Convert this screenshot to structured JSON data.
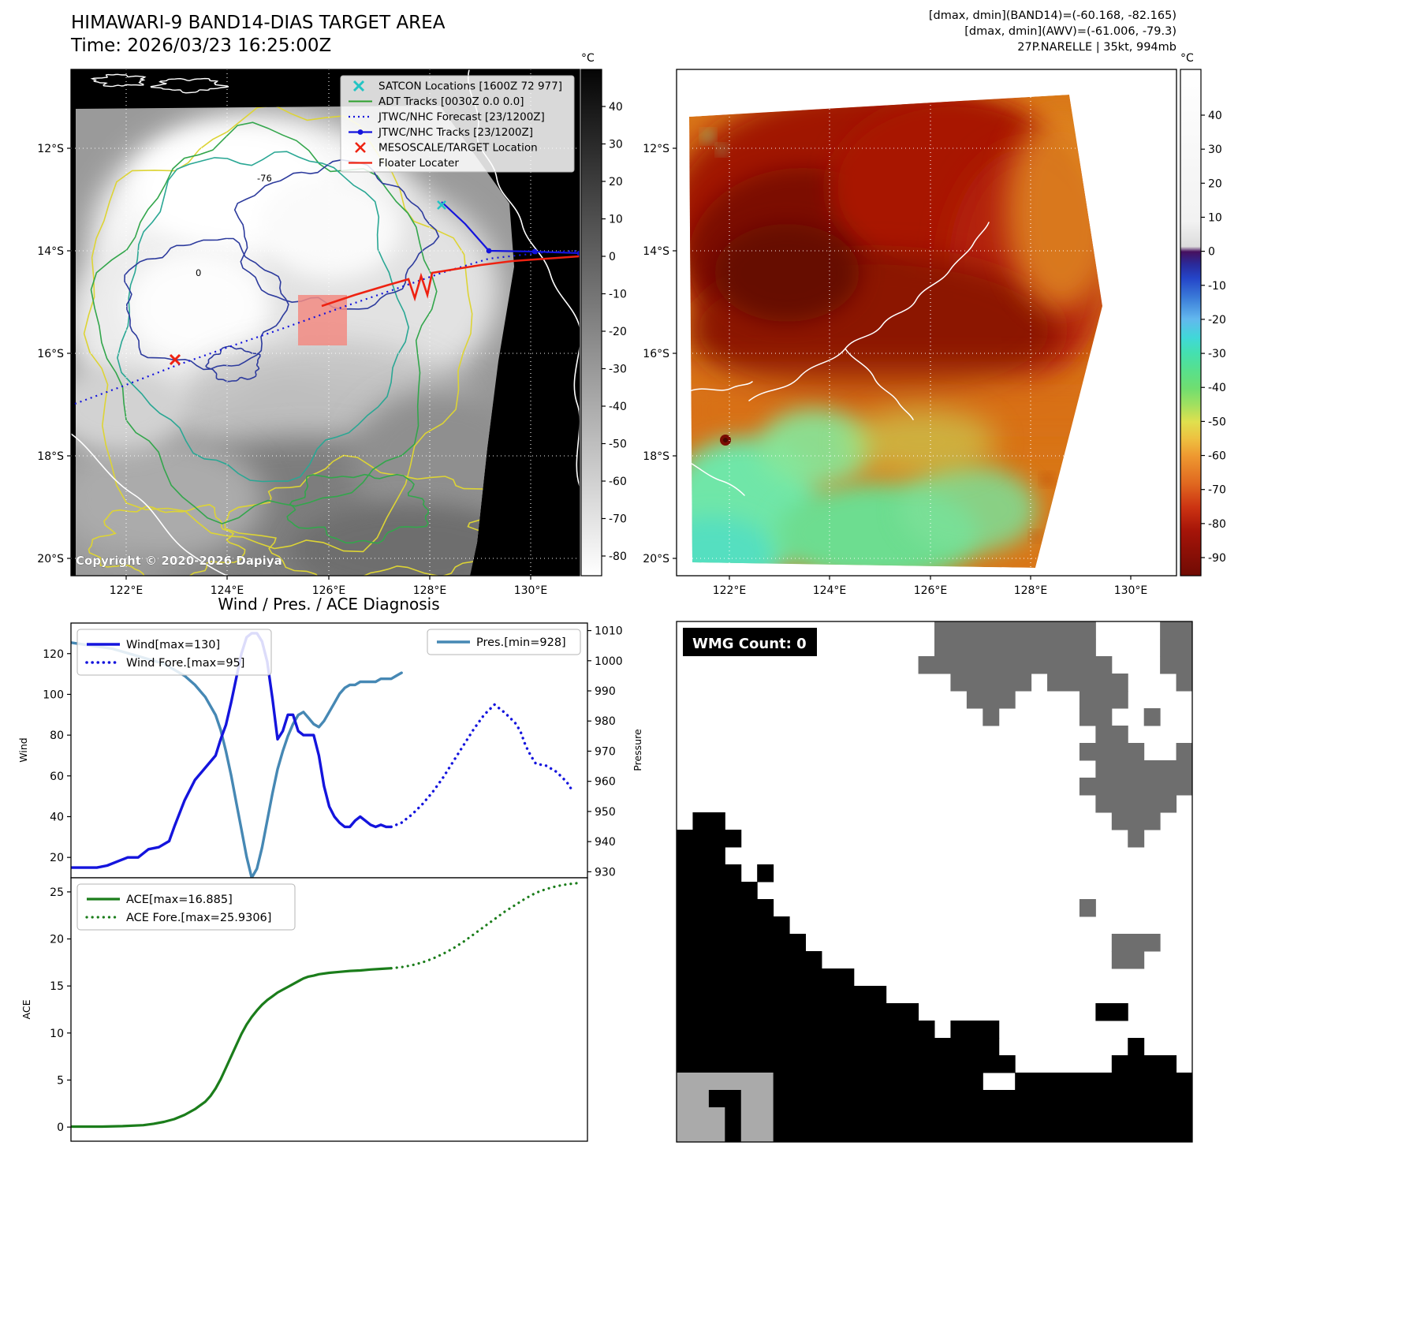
{
  "figure": {
    "title1": "HIMAWARI-9 BAND14-DIAS TARGET AREA",
    "title2": "Time: 2026/03/23 16:25:00Z"
  },
  "header_right": {
    "line1": "[dmax, dmin](BAND14)=(-60.168, -82.165)",
    "line2": "[dmax, dmin](AWV)=(-61.006, -79.3)",
    "line3": "27P.NARELLE | 35kt, 994mb"
  },
  "colors": {
    "wind": "#1414dd",
    "pres": "#4688b4",
    "ace": "#1b7d1b",
    "track_blue": "#1414dd",
    "track_red": "#ee2211",
    "satcon_cyan": "#22c4c4",
    "adt_green": "#2ca02c",
    "target_fill": "#f28b82"
  },
  "band14_panel": {
    "lat_ticks": [
      "12°S",
      "14°S",
      "16°S",
      "18°S",
      "20°S"
    ],
    "lon_ticks": [
      "122°E",
      "124°E",
      "126°E",
      "128°E",
      "130°E"
    ],
    "legend": [
      "SATCON Locations [1600Z 72 977]",
      "ADT Tracks [0030Z 0.0 0.0]",
      "JTWC/NHC Forecast [23/1200Z]",
      "JTWC/NHC Tracks [23/1200Z]",
      "MESOSCALE/TARGET Location",
      "Floater Locater"
    ],
    "copyright": "Copyright © 2020-2026 Dapiya",
    "contour_label_1": "-76",
    "contour_label_2": "0",
    "colorbar": {
      "unit": "°C",
      "ticks": [
        "40",
        "30",
        "20",
        "10",
        "0",
        "-10",
        "-20",
        "-30",
        "-40",
        "-50",
        "-60",
        "-70",
        "-80"
      ]
    }
  },
  "awv_panel": {
    "lat_ticks": [
      "12°S",
      "14°S",
      "16°S",
      "18°S",
      "20°S"
    ],
    "lon_ticks": [
      "122°E",
      "124°E",
      "126°E",
      "128°E",
      "130°E"
    ],
    "colorbar": {
      "unit": "°C",
      "ticks": [
        "40",
        "30",
        "20",
        "10",
        "0",
        "-10",
        "-20",
        "-30",
        "-40",
        "-50",
        "-60",
        "-70",
        "-80",
        "-90"
      ]
    }
  },
  "diagnosis": {
    "title": "Wind / Pres. / ACE Diagnosis",
    "wind_axis_label": "Wind",
    "pressure_axis_label": "Pressure",
    "ace_axis_label": "ACE",
    "wind_ticks": [
      "120",
      "100",
      "80",
      "60",
      "40",
      "20"
    ],
    "pressure_ticks": [
      "1010",
      "1000",
      "990",
      "980",
      "970",
      "960",
      "950",
      "940",
      "930"
    ],
    "ace_ticks": [
      "25",
      "20",
      "15",
      "10",
      "5",
      "0"
    ],
    "legend": {
      "wind": "Wind[max=130]",
      "wind_fore": "Wind Fore.[max=95]",
      "pres": "Pres.[min=928]",
      "ace": "ACE[max=16.885]",
      "ace_fore": "ACE Fore.[max=25.9306]"
    }
  },
  "wmg_panel": {
    "label": "WMG Count: 0",
    "cell_colors": {
      "g": "#6e6e6e",
      "l": "#aaaaaa",
      "b": "#000000"
    },
    "grid": [
      "................gggggggggg....gg",
      "................gggggggggg....gg",
      "...............gggggggggggg...gg",
      ".................ggggg.ggggg...g",
      "..................ggg....ggg....",
      "...................g.....gg..g..",
      "..........................gg....",
      ".........................gggg..g",
      "..........................gggggg",
      ".........................ggggggg",
      "..........................ggggg.",
      ".bb........................ggg..",
      "bbbb........................g...",
      "bbb.............................",
      "bbbb.b..........................",
      "bbbbb...........................",
      "bbbbbb...................g......",
      "bbbbbbb.........................",
      "bbbbbbbb...................ggg..",
      "bbbbbbbbb..................gg...",
      "bbbbbbbbbbb.....................",
      "bbbbbbbbbbbbb...................",
      "bbbbbbbbbbbbbbb...........bb....",
      "bbbbbbbbbbbbbbbb.bbb............",
      "bbbbbbbbbbbbbbbbbbbb........b...",
      "bbbbbbbbbbbbbbbbbbbbb......bbbb.",
      "llllllbbbbbbbbbbbbb..bbbbbbbbbbb",
      "llbbllbbbbbbbbbbbbbbbbbbbbbbbbbb",
      "lllbllbbbbbbbbbbbbbbbbbbbbbbbbbb",
      "lllbllbbbbbbbbbbbbbbbbbbbbbbbbbb"
    ]
  },
  "chart_data": [
    {
      "type": "line",
      "title": "Wind / Pres. / ACE Diagnosis — wind & pressure",
      "ylabel": "Wind",
      "y2label": "Pressure",
      "xlim": [
        0,
        100
      ],
      "ylim": [
        10,
        135
      ],
      "y2lim": [
        928,
        1012.5
      ],
      "grid": false,
      "legend_position": "upper left / upper right",
      "series": [
        {
          "name": "Pres.[min=928]",
          "axis": "right",
          "style": "solid",
          "color": "#4688b4",
          "width": 3.4,
          "points": [
            [
              0,
              1006
            ],
            [
              4,
              1005
            ],
            [
              8,
              1004
            ],
            [
              12,
              1002
            ],
            [
              16,
              1000
            ],
            [
              18,
              999
            ],
            [
              20,
              997
            ],
            [
              22,
              995
            ],
            [
              24,
              992
            ],
            [
              26,
              988
            ],
            [
              28,
              982
            ],
            [
              29,
              977
            ],
            [
              30,
              970
            ],
            [
              31,
              962
            ],
            [
              32,
              953
            ],
            [
              33,
              944
            ],
            [
              34,
              935
            ],
            [
              35,
              928
            ],
            [
              36,
              931
            ],
            [
              37,
              938
            ],
            [
              38,
              947
            ],
            [
              39,
              956
            ],
            [
              40,
              964
            ],
            [
              41,
              970
            ],
            [
              42,
              975
            ],
            [
              43,
              979
            ],
            [
              44,
              982
            ],
            [
              45,
              983
            ],
            [
              46,
              981
            ],
            [
              47,
              979
            ],
            [
              48,
              978
            ],
            [
              49,
              980
            ],
            [
              50,
              983
            ],
            [
              51,
              986
            ],
            [
              52,
              989
            ],
            [
              53,
              991
            ],
            [
              54,
              992
            ],
            [
              55,
              992
            ],
            [
              56,
              993
            ],
            [
              57,
              993
            ],
            [
              58,
              993
            ],
            [
              59,
              993
            ],
            [
              60,
              994
            ],
            [
              61,
              994
            ],
            [
              62,
              994
            ],
            [
              63,
              995
            ],
            [
              64,
              996
            ]
          ]
        },
        {
          "name": "Wind[max=130]",
          "axis": "left",
          "style": "solid",
          "color": "#1414dd",
          "width": 3.4,
          "points": [
            [
              0,
              15
            ],
            [
              3,
              15
            ],
            [
              5,
              15
            ],
            [
              7,
              16
            ],
            [
              9,
              18
            ],
            [
              11,
              20
            ],
            [
              13,
              20
            ],
            [
              15,
              24
            ],
            [
              17,
              25
            ],
            [
              19,
              28
            ],
            [
              20,
              35
            ],
            [
              22,
              48
            ],
            [
              24,
              58
            ],
            [
              26,
              64
            ],
            [
              28,
              70
            ],
            [
              29,
              78
            ],
            [
              30,
              85
            ],
            [
              31,
              96
            ],
            [
              32,
              108
            ],
            [
              33,
              120
            ],
            [
              34,
              128
            ],
            [
              35,
              130
            ],
            [
              36,
              130
            ],
            [
              37,
              126
            ],
            [
              38,
              116
            ],
            [
              39,
              98
            ],
            [
              40,
              78
            ],
            [
              41,
              82
            ],
            [
              42,
              90
            ],
            [
              43,
              90
            ],
            [
              44,
              82
            ],
            [
              45,
              80
            ],
            [
              46,
              80
            ],
            [
              47,
              80
            ],
            [
              48,
              70
            ],
            [
              49,
              55
            ],
            [
              50,
              45
            ],
            [
              51,
              40
            ],
            [
              52,
              37
            ],
            [
              53,
              35
            ],
            [
              54,
              35
            ],
            [
              55,
              38
            ],
            [
              56,
              40
            ],
            [
              57,
              38
            ],
            [
              58,
              36
            ],
            [
              59,
              35
            ],
            [
              60,
              36
            ],
            [
              61,
              35
            ],
            [
              62,
              35
            ]
          ]
        },
        {
          "name": "Wind Fore.[max=95]",
          "axis": "left",
          "style": "dotted",
          "color": "#1414dd",
          "width": 3.4,
          "points": [
            [
              62,
              35
            ],
            [
              64,
              37
            ],
            [
              66,
              41
            ],
            [
              68,
              46
            ],
            [
              70,
              52
            ],
            [
              72,
              59
            ],
            [
              74,
              67
            ],
            [
              76,
              75
            ],
            [
              78,
              83
            ],
            [
              80,
              90
            ],
            [
              82,
              95
            ],
            [
              84,
              91
            ],
            [
              86,
              86
            ],
            [
              87,
              82
            ],
            [
              88,
              75
            ],
            [
              89,
              70
            ],
            [
              90,
              66
            ],
            [
              92,
              65
            ],
            [
              94,
              62
            ],
            [
              96,
              57
            ],
            [
              97,
              53
            ]
          ]
        }
      ]
    },
    {
      "type": "line",
      "title": "Wind / Pres. / ACE Diagnosis — accumulated cyclone energy",
      "ylabel": "ACE",
      "xlim": [
        0,
        100
      ],
      "ylim": [
        -1.5,
        26.5
      ],
      "grid": false,
      "legend_position": "upper left",
      "series": [
        {
          "name": "ACE[max=16.885]",
          "axis": "left",
          "style": "solid",
          "color": "#1b7d1b",
          "width": 3.2,
          "points": [
            [
              0,
              0.05
            ],
            [
              6,
              0.05
            ],
            [
              10,
              0.1
            ],
            [
              14,
              0.2
            ],
            [
              16,
              0.35
            ],
            [
              18,
              0.55
            ],
            [
              20,
              0.85
            ],
            [
              22,
              1.3
            ],
            [
              24,
              1.9
            ],
            [
              26,
              2.7
            ],
            [
              27,
              3.3
            ],
            [
              28,
              4.1
            ],
            [
              29,
              5.1
            ],
            [
              30,
              6.3
            ],
            [
              31,
              7.5
            ],
            [
              32,
              8.7
            ],
            [
              33,
              9.9
            ],
            [
              34,
              10.9
            ],
            [
              35,
              11.7
            ],
            [
              36,
              12.4
            ],
            [
              37,
              13.0
            ],
            [
              38,
              13.5
            ],
            [
              39,
              13.9
            ],
            [
              40,
              14.3
            ],
            [
              41,
              14.6
            ],
            [
              42,
              14.9
            ],
            [
              43,
              15.2
            ],
            [
              44,
              15.5
            ],
            [
              45,
              15.8
            ],
            [
              46,
              16.0
            ],
            [
              47,
              16.1
            ],
            [
              48,
              16.25
            ],
            [
              50,
              16.4
            ],
            [
              52,
              16.5
            ],
            [
              54,
              16.6
            ],
            [
              56,
              16.65
            ],
            [
              58,
              16.75
            ],
            [
              60,
              16.82
            ],
            [
              62,
              16.885
            ]
          ]
        },
        {
          "name": "ACE Fore.[max=25.9306]",
          "axis": "left",
          "style": "dotted",
          "color": "#1b7d1b",
          "width": 3.2,
          "points": [
            [
              62,
              16.885
            ],
            [
              64,
              17.0
            ],
            [
              66,
              17.2
            ],
            [
              68,
              17.5
            ],
            [
              70,
              17.9
            ],
            [
              72,
              18.4
            ],
            [
              74,
              19.0
            ],
            [
              76,
              19.7
            ],
            [
              78,
              20.5
            ],
            [
              80,
              21.3
            ],
            [
              82,
              22.1
            ],
            [
              84,
              22.9
            ],
            [
              86,
              23.6
            ],
            [
              88,
              24.3
            ],
            [
              90,
              24.9
            ],
            [
              92,
              25.3
            ],
            [
              94,
              25.6
            ],
            [
              96,
              25.8
            ],
            [
              98,
              25.93
            ]
          ]
        }
      ]
    }
  ]
}
